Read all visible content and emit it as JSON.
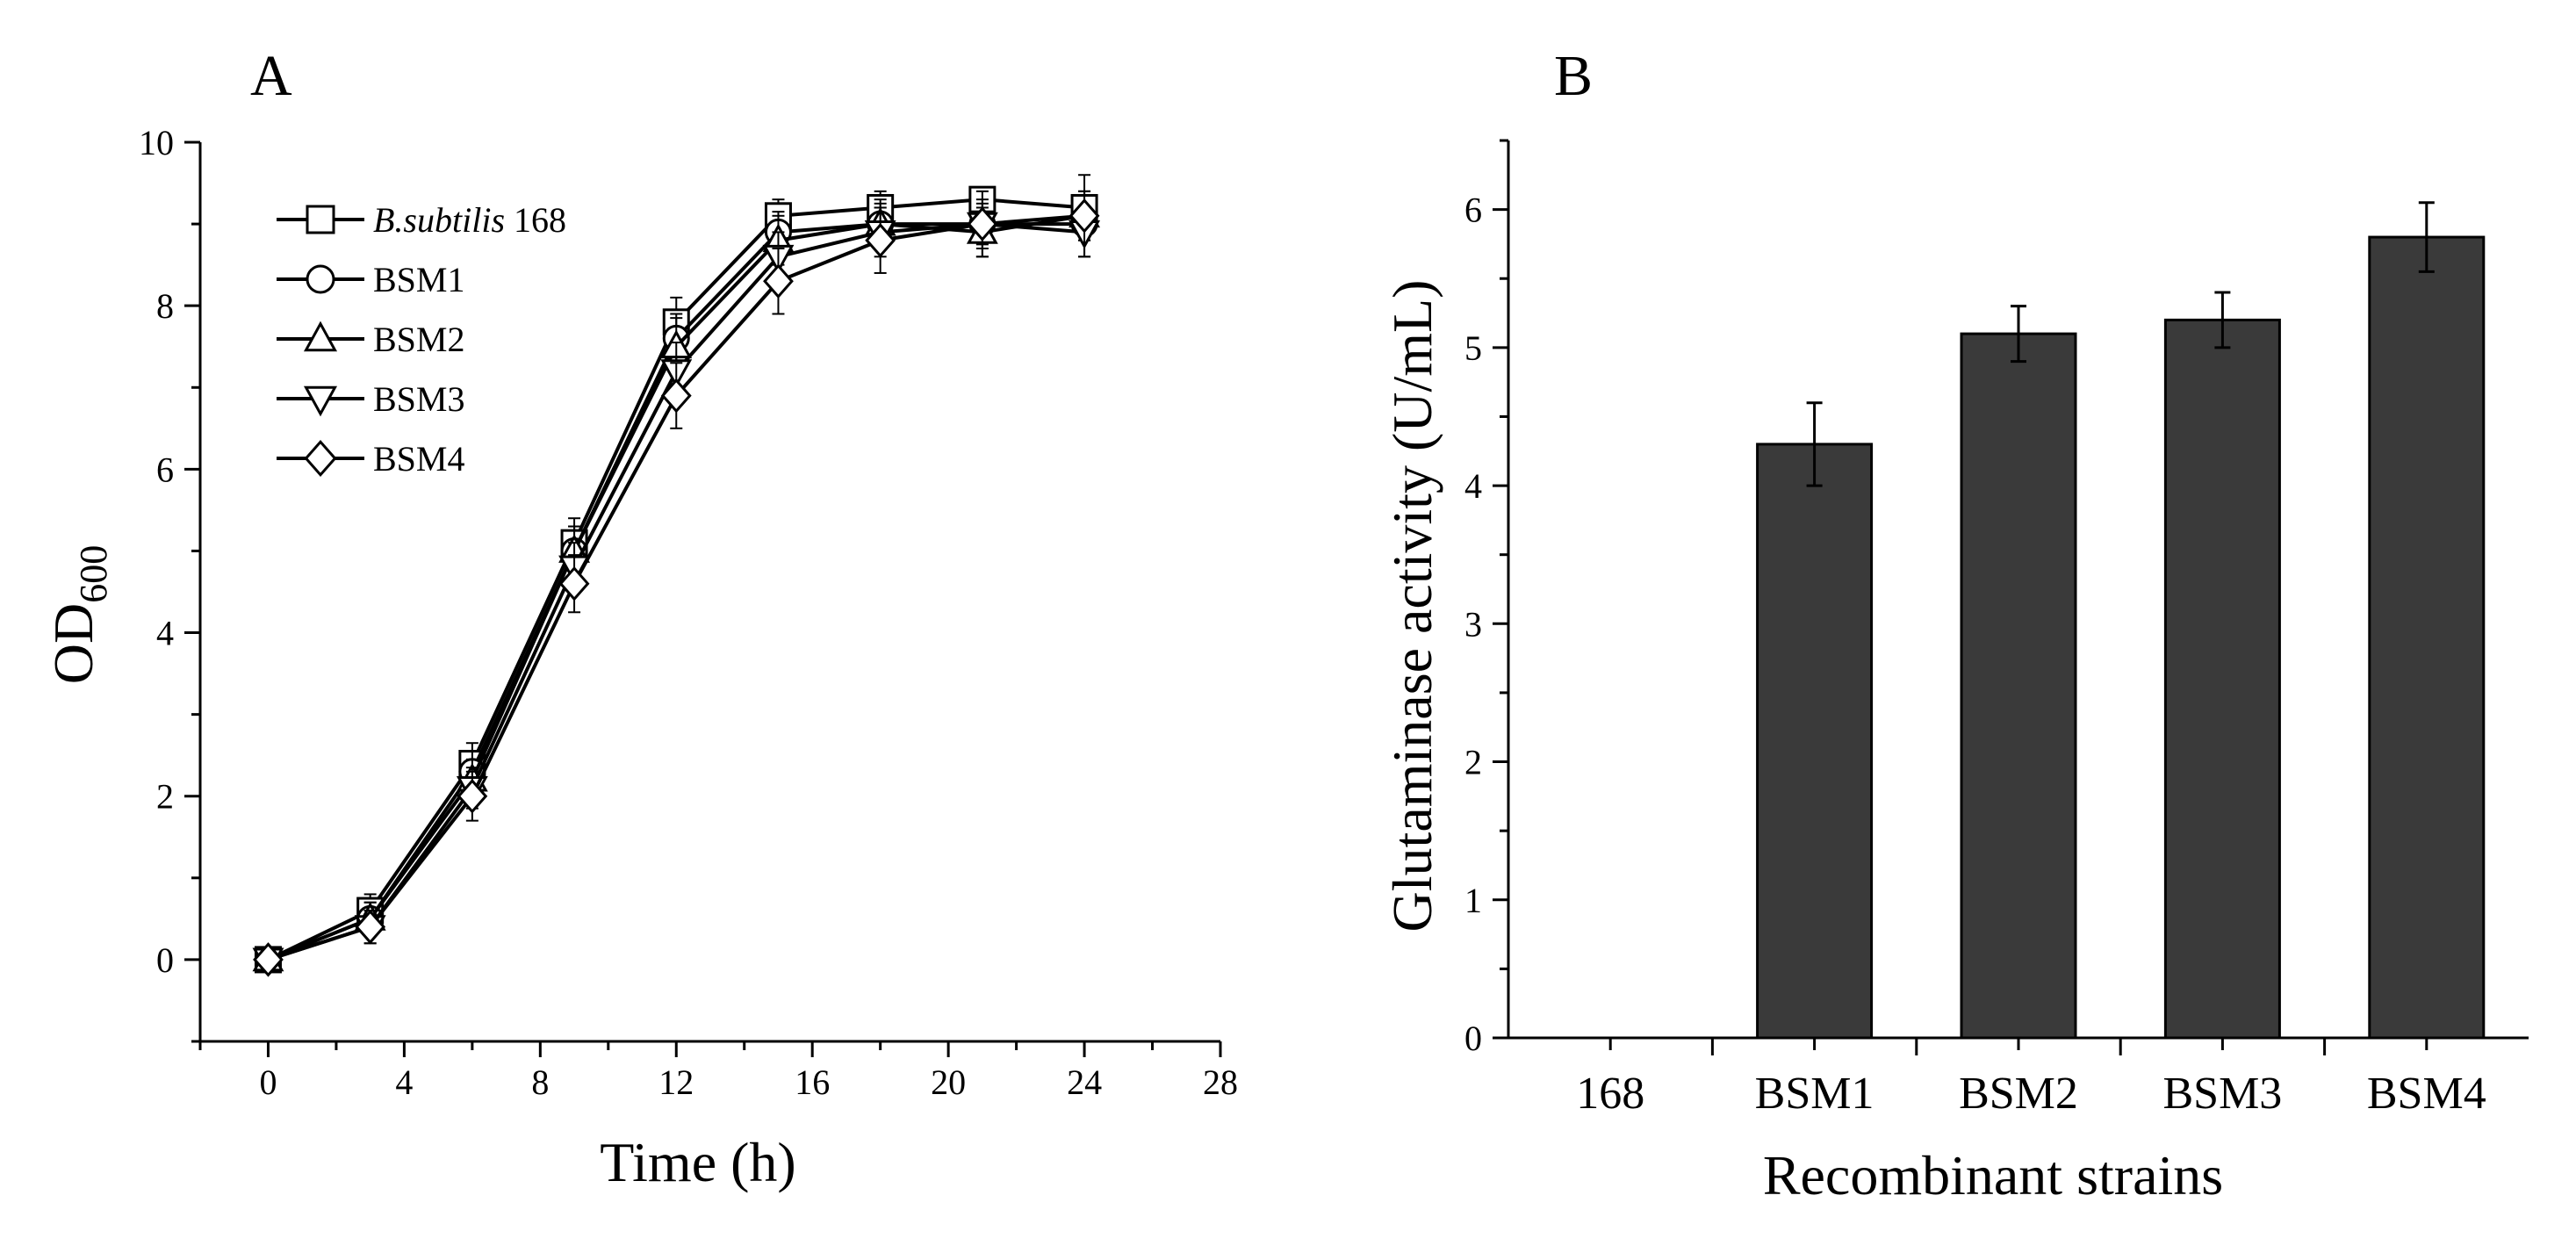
{
  "chart_data": [
    {
      "panel_label": "A",
      "type": "line",
      "xlabel": "Time (h)",
      "ylabel_main": "OD",
      "ylabel_sub": "600",
      "xlim": [
        -2,
        28
      ],
      "ylim": [
        -1,
        10
      ],
      "xticks": [
        0,
        4,
        8,
        12,
        16,
        20,
        24,
        28
      ],
      "yticks": [
        0,
        2,
        4,
        6,
        8,
        10
      ],
      "legend_position": "top-left",
      "x": [
        0,
        3,
        6,
        9,
        12,
        15,
        18,
        21,
        24
      ],
      "series": [
        {
          "name_italic": "B.subtilis",
          "name_rest": " 168",
          "marker": "square",
          "values": [
            0,
            0.6,
            2.4,
            5.1,
            7.8,
            9.1,
            9.2,
            9.3,
            9.2
          ],
          "errors": [
            0.15,
            0.2,
            0.25,
            0.3,
            0.3,
            0.2,
            0.2,
            0.15,
            0.2
          ]
        },
        {
          "name": "BSM1",
          "marker": "circle",
          "values": [
            0,
            0.5,
            2.3,
            5.0,
            7.6,
            8.9,
            9.0,
            9.0,
            9.0
          ],
          "errors": [
            0.15,
            0.2,
            0.25,
            0.3,
            0.3,
            0.25,
            0.25,
            0.25,
            0.2
          ]
        },
        {
          "name": "BSM2",
          "marker": "triangle-up",
          "values": [
            0,
            0.5,
            2.2,
            5.0,
            7.5,
            8.8,
            9.0,
            8.9,
            9.1
          ],
          "errors": [
            0.15,
            0.2,
            0.25,
            0.3,
            0.35,
            0.3,
            0.3,
            0.3,
            0.3
          ]
        },
        {
          "name": "BSM3",
          "marker": "triangle-down",
          "values": [
            0,
            0.4,
            2.1,
            4.8,
            7.2,
            8.6,
            8.9,
            9.0,
            8.9
          ],
          "errors": [
            0.15,
            0.2,
            0.25,
            0.3,
            0.35,
            0.3,
            0.3,
            0.3,
            0.3
          ]
        },
        {
          "name": "BSM4",
          "marker": "diamond",
          "values": [
            0,
            0.4,
            2.0,
            4.6,
            6.9,
            8.3,
            8.8,
            9.0,
            9.1
          ],
          "errors": [
            0.15,
            0.2,
            0.3,
            0.35,
            0.4,
            0.4,
            0.4,
            0.4,
            0.5
          ]
        }
      ]
    },
    {
      "panel_label": "B",
      "type": "bar",
      "xlabel": "Recombinant strains",
      "ylabel": "Glutaminase activity (U/mL)",
      "categories": [
        "168",
        "BSM1",
        "BSM2",
        "BSM3",
        "BSM4"
      ],
      "values": [
        0,
        4.3,
        5.1,
        5.2,
        5.8
      ],
      "errors": [
        0,
        0.3,
        0.2,
        0.2,
        0.25
      ],
      "ylim": [
        0,
        6.5
      ],
      "yticks": [
        0,
        1,
        2,
        3,
        4,
        5,
        6
      ],
      "bar_color": "#3a3a3a"
    }
  ]
}
